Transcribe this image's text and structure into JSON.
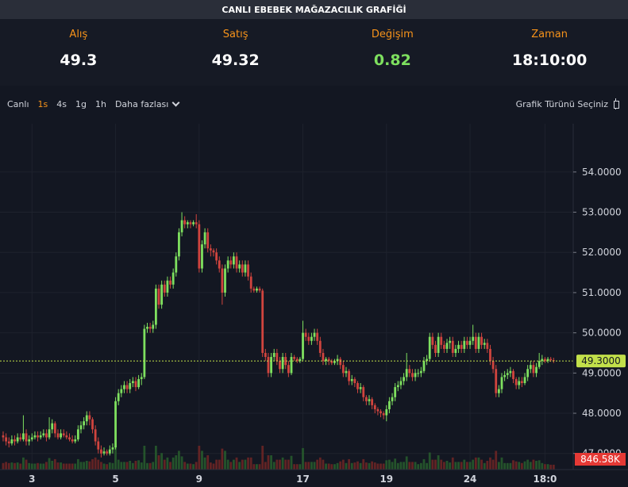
{
  "title": "CANLI EBEBEK MAĞAZACILIK GRAFİĞİ",
  "quotes": [
    {
      "label": "Alış",
      "value": "49.3"
    },
    {
      "label": "Satış",
      "value": "49.32"
    },
    {
      "label": "Değişim",
      "value": "0.82"
    },
    {
      "label": "Zaman",
      "value": "18:10:00"
    }
  ],
  "toolbar": {
    "canli": "Canlı",
    "intervals": [
      "1s",
      "4s",
      "1g",
      "1h"
    ],
    "active_interval": "1s",
    "more": "Daha fazlası",
    "chart_type": "Grafik Türünü Seçiniz"
  },
  "colors": {
    "up": "#7ee05f",
    "down": "#d0443e",
    "price_line": "#c2e04a",
    "volume_badge": "#e53935"
  },
  "chart_data": {
    "type": "candlestick",
    "y_ticks": [
      "54.0000",
      "53.0000",
      "52.0000",
      "51.0000",
      "50.0000",
      "49.0000",
      "48.0000",
      "47.0000"
    ],
    "ylim": [
      46.6,
      55.2
    ],
    "x_ticks": [
      {
        "label": "3",
        "i": 10
      },
      {
        "label": "5",
        "i": 39
      },
      {
        "label": "9",
        "i": 68
      },
      {
        "label": "17",
        "i": 104
      },
      {
        "label": "19",
        "i": 133
      },
      {
        "label": "24",
        "i": 162
      },
      {
        "label": "18:0",
        "i": 188
      }
    ],
    "last_price": "49.3000",
    "last_price_value": 49.3,
    "volume_label": "846.58K",
    "candles": [
      [
        47.45,
        47.4,
        47.55,
        47.3
      ],
      [
        47.4,
        47.3,
        47.5,
        47.2
      ],
      [
        47.3,
        47.25,
        47.4,
        47.15
      ],
      [
        47.25,
        47.35,
        47.45,
        47.2
      ],
      [
        47.35,
        47.3,
        47.45,
        47.2
      ],
      [
        47.3,
        47.4,
        47.5,
        47.25
      ],
      [
        47.4,
        47.35,
        47.5,
        47.3
      ],
      [
        47.35,
        47.5,
        47.95,
        47.3
      ],
      [
        47.5,
        47.3,
        47.6,
        47.2
      ],
      [
        47.3,
        47.35,
        47.45,
        47.2
      ],
      [
        47.35,
        47.4,
        47.5,
        47.3
      ],
      [
        47.4,
        47.45,
        47.55,
        47.35
      ],
      [
        47.45,
        47.4,
        47.55,
        47.3
      ],
      [
        47.4,
        47.45,
        47.55,
        47.35
      ],
      [
        47.45,
        47.5,
        47.6,
        47.4
      ],
      [
        47.5,
        47.4,
        47.6,
        47.3
      ],
      [
        47.4,
        47.6,
        47.9,
        47.35
      ],
      [
        47.6,
        47.75,
        47.85,
        47.5
      ],
      [
        47.75,
        47.5,
        47.8,
        47.4
      ],
      [
        47.5,
        47.4,
        47.6,
        47.35
      ],
      [
        47.4,
        47.5,
        47.6,
        47.35
      ],
      [
        47.5,
        47.45,
        47.6,
        47.4
      ],
      [
        47.45,
        47.4,
        47.55,
        47.35
      ],
      [
        47.4,
        47.35,
        47.5,
        47.3
      ],
      [
        47.35,
        47.3,
        47.45,
        47.25
      ],
      [
        47.3,
        47.35,
        47.45,
        47.25
      ],
      [
        47.35,
        47.6,
        47.7,
        47.3
      ],
      [
        47.6,
        47.7,
        47.8,
        47.5
      ],
      [
        47.7,
        47.8,
        47.9,
        47.6
      ],
      [
        47.8,
        47.95,
        48.05,
        47.7
      ],
      [
        47.95,
        47.85,
        48.05,
        47.7
      ],
      [
        47.85,
        47.6,
        47.9,
        47.5
      ],
      [
        47.6,
        47.3,
        47.7,
        47.2
      ],
      [
        47.3,
        47.1,
        47.4,
        47.0
      ],
      [
        47.1,
        47.0,
        47.2,
        46.9
      ],
      [
        47.0,
        47.05,
        47.15,
        46.95
      ],
      [
        47.05,
        47.0,
        47.1,
        46.95
      ],
      [
        47.0,
        47.1,
        47.2,
        46.95
      ],
      [
        47.1,
        47.15,
        47.25,
        47.0
      ],
      [
        47.15,
        48.3,
        48.4,
        47.1
      ],
      [
        48.3,
        48.5,
        48.6,
        48.2
      ],
      [
        48.5,
        48.6,
        48.7,
        48.4
      ],
      [
        48.6,
        48.7,
        48.8,
        48.5
      ],
      [
        48.7,
        48.6,
        48.8,
        48.5
      ],
      [
        48.6,
        48.75,
        48.85,
        48.5
      ],
      [
        48.75,
        48.8,
        48.9,
        48.65
      ],
      [
        48.8,
        48.65,
        48.9,
        48.55
      ],
      [
        48.65,
        48.85,
        48.95,
        48.6
      ],
      [
        48.85,
        48.9,
        49.0,
        48.7
      ],
      [
        48.9,
        50.1,
        50.2,
        48.85
      ],
      [
        50.1,
        50.15,
        50.25,
        50.0
      ],
      [
        50.15,
        50.1,
        50.25,
        50.0
      ],
      [
        50.1,
        50.2,
        50.3,
        50.0
      ],
      [
        50.2,
        51.1,
        51.2,
        50.1
      ],
      [
        51.1,
        50.7,
        51.2,
        50.6
      ],
      [
        50.7,
        51.2,
        51.3,
        50.6
      ],
      [
        51.2,
        51.0,
        51.3,
        50.9
      ],
      [
        51.0,
        51.3,
        51.4,
        50.9
      ],
      [
        51.3,
        51.2,
        51.4,
        51.1
      ],
      [
        51.2,
        51.5,
        51.6,
        51.1
      ],
      [
        51.5,
        51.9,
        52.0,
        51.4
      ],
      [
        51.9,
        52.5,
        52.6,
        51.8
      ],
      [
        52.5,
        52.8,
        53.0,
        52.4
      ],
      [
        52.8,
        52.7,
        52.9,
        52.6
      ],
      [
        52.7,
        52.75,
        52.8,
        52.6
      ],
      [
        52.75,
        52.7,
        52.8,
        52.6
      ],
      [
        52.7,
        52.75,
        52.8,
        52.65
      ],
      [
        52.75,
        52.7,
        52.95,
        52.6
      ],
      [
        52.7,
        51.6,
        52.8,
        51.5
      ],
      [
        51.6,
        52.2,
        52.3,
        51.5
      ],
      [
        52.2,
        52.5,
        52.6,
        52.1
      ],
      [
        52.5,
        52.1,
        52.6,
        52.0
      ],
      [
        52.1,
        52.05,
        52.2,
        51.9
      ],
      [
        52.05,
        52.0,
        52.1,
        51.9
      ],
      [
        52.0,
        51.8,
        52.1,
        51.7
      ],
      [
        51.8,
        51.6,
        51.9,
        51.5
      ],
      [
        51.6,
        51.0,
        51.7,
        50.7
      ],
      [
        51.0,
        51.6,
        51.7,
        50.9
      ],
      [
        51.6,
        51.8,
        51.9,
        51.5
      ],
      [
        51.8,
        51.7,
        51.9,
        51.6
      ],
      [
        51.7,
        51.9,
        52.0,
        51.6
      ],
      [
        51.9,
        51.6,
        52.0,
        51.5
      ],
      [
        51.6,
        51.7,
        51.8,
        51.5
      ],
      [
        51.7,
        51.5,
        51.8,
        51.4
      ],
      [
        51.5,
        51.7,
        51.8,
        51.4
      ],
      [
        51.7,
        51.4,
        51.8,
        51.3
      ],
      [
        51.4,
        51.1,
        51.5,
        51.0
      ],
      [
        51.1,
        51.05,
        51.15,
        51.0
      ],
      [
        51.05,
        51.1,
        51.15,
        51.0
      ],
      [
        51.1,
        51.05,
        51.15,
        51.0
      ],
      [
        51.05,
        49.5,
        51.1,
        49.4
      ],
      [
        49.5,
        49.4,
        49.6,
        49.3
      ],
      [
        49.4,
        49.0,
        49.5,
        48.9
      ],
      [
        49.0,
        49.4,
        49.5,
        48.9
      ],
      [
        49.4,
        49.5,
        49.6,
        49.3
      ],
      [
        49.5,
        49.3,
        49.6,
        49.2
      ],
      [
        49.3,
        49.1,
        49.4,
        49.0
      ],
      [
        49.1,
        49.4,
        49.5,
        49.0
      ],
      [
        49.4,
        49.2,
        49.5,
        49.1
      ],
      [
        49.2,
        49.0,
        49.3,
        48.9
      ],
      [
        49.0,
        49.4,
        49.5,
        48.95
      ],
      [
        49.4,
        49.35,
        49.45,
        49.3
      ],
      [
        49.35,
        49.3,
        49.4,
        49.25
      ],
      [
        49.3,
        49.35,
        49.4,
        49.25
      ],
      [
        49.35,
        50.0,
        50.3,
        49.3
      ],
      [
        50.0,
        49.9,
        50.1,
        49.8
      ],
      [
        49.9,
        49.8,
        50.0,
        49.7
      ],
      [
        49.8,
        49.9,
        50.0,
        49.7
      ],
      [
        49.9,
        50.0,
        50.1,
        49.8
      ],
      [
        50.0,
        49.8,
        50.1,
        49.7
      ],
      [
        49.8,
        49.5,
        49.9,
        49.4
      ],
      [
        49.5,
        49.3,
        49.6,
        49.2
      ],
      [
        49.3,
        49.35,
        49.4,
        49.2
      ],
      [
        49.35,
        49.3,
        49.4,
        49.2
      ],
      [
        49.3,
        49.25,
        49.35,
        49.2
      ],
      [
        49.25,
        49.3,
        49.35,
        49.2
      ],
      [
        49.3,
        49.35,
        49.45,
        49.2
      ],
      [
        49.35,
        49.2,
        49.4,
        49.1
      ],
      [
        49.2,
        49.0,
        49.3,
        48.9
      ],
      [
        49.0,
        49.05,
        49.15,
        48.9
      ],
      [
        49.05,
        48.8,
        49.1,
        48.7
      ],
      [
        48.8,
        48.85,
        48.95,
        48.7
      ],
      [
        48.85,
        48.75,
        48.9,
        48.65
      ],
      [
        48.75,
        48.6,
        48.8,
        48.5
      ],
      [
        48.6,
        48.65,
        48.75,
        48.5
      ],
      [
        48.65,
        48.4,
        48.7,
        48.3
      ],
      [
        48.4,
        48.3,
        48.45,
        48.2
      ],
      [
        48.3,
        48.35,
        48.45,
        48.2
      ],
      [
        48.35,
        48.2,
        48.4,
        48.1
      ],
      [
        48.2,
        48.1,
        48.25,
        48.0
      ],
      [
        48.1,
        48.05,
        48.15,
        47.95
      ],
      [
        48.05,
        48.0,
        48.1,
        47.9
      ],
      [
        48.0,
        47.95,
        48.05,
        47.85
      ],
      [
        47.95,
        48.1,
        48.2,
        47.8
      ],
      [
        48.1,
        48.3,
        48.4,
        48.0
      ],
      [
        48.3,
        48.4,
        48.5,
        48.2
      ],
      [
        48.4,
        48.65,
        48.75,
        48.3
      ],
      [
        48.65,
        48.7,
        48.8,
        48.55
      ],
      [
        48.7,
        48.8,
        48.9,
        48.6
      ],
      [
        48.8,
        48.9,
        49.0,
        48.7
      ],
      [
        48.9,
        49.1,
        49.5,
        48.8
      ],
      [
        49.1,
        49.0,
        49.2,
        48.9
      ],
      [
        49.0,
        48.9,
        49.1,
        48.8
      ],
      [
        48.9,
        49.0,
        49.1,
        48.8
      ],
      [
        49.0,
        49.0,
        49.1,
        48.9
      ],
      [
        49.0,
        49.05,
        49.15,
        48.9
      ],
      [
        49.05,
        49.3,
        49.4,
        49.0
      ],
      [
        49.3,
        49.35,
        49.45,
        49.2
      ],
      [
        49.35,
        49.9,
        50.0,
        49.3
      ],
      [
        49.9,
        49.7,
        50.0,
        49.6
      ],
      [
        49.7,
        49.5,
        49.8,
        49.4
      ],
      [
        49.5,
        49.9,
        50.0,
        49.4
      ],
      [
        49.9,
        49.7,
        50.0,
        49.6
      ],
      [
        49.7,
        49.6,
        49.8,
        49.5
      ],
      [
        49.6,
        49.75,
        49.85,
        49.5
      ],
      [
        49.75,
        49.8,
        49.9,
        49.6
      ],
      [
        49.8,
        49.5,
        49.9,
        49.4
      ],
      [
        49.5,
        49.6,
        49.7,
        49.4
      ],
      [
        49.6,
        49.7,
        49.8,
        49.5
      ],
      [
        49.7,
        49.6,
        49.8,
        49.5
      ],
      [
        49.6,
        49.8,
        49.9,
        49.5
      ],
      [
        49.8,
        49.7,
        49.9,
        49.6
      ],
      [
        49.7,
        49.8,
        49.9,
        49.6
      ],
      [
        49.8,
        49.9,
        50.2,
        49.7
      ],
      [
        49.9,
        49.6,
        50.0,
        49.5
      ],
      [
        49.6,
        49.9,
        50.0,
        49.5
      ],
      [
        49.9,
        49.7,
        50.0,
        49.6
      ],
      [
        49.7,
        49.75,
        49.85,
        49.6
      ],
      [
        49.75,
        49.6,
        49.85,
        49.5
      ],
      [
        49.6,
        49.3,
        49.7,
        49.2
      ],
      [
        49.3,
        49.1,
        49.4,
        49.0
      ],
      [
        49.1,
        48.5,
        49.2,
        48.4
      ],
      [
        48.5,
        48.6,
        48.7,
        48.4
      ],
      [
        48.6,
        48.9,
        49.0,
        48.5
      ],
      [
        48.9,
        48.95,
        49.05,
        48.8
      ],
      [
        48.95,
        49.0,
        49.1,
        48.85
      ],
      [
        49.0,
        49.05,
        49.15,
        48.9
      ],
      [
        49.05,
        48.85,
        49.1,
        48.75
      ],
      [
        48.85,
        48.7,
        48.9,
        48.6
      ],
      [
        48.7,
        48.8,
        48.9,
        48.6
      ],
      [
        48.8,
        48.75,
        48.9,
        48.65
      ],
      [
        48.75,
        48.9,
        49.0,
        48.7
      ],
      [
        48.9,
        49.1,
        49.2,
        48.8
      ],
      [
        49.1,
        49.2,
        49.3,
        49.0
      ],
      [
        49.2,
        49.0,
        49.3,
        48.9
      ],
      [
        49.0,
        49.15,
        49.25,
        48.9
      ],
      [
        49.15,
        49.3,
        49.5,
        49.1
      ],
      [
        49.3,
        49.35,
        49.45,
        49.2
      ],
      [
        49.35,
        49.3,
        49.4,
        49.25
      ],
      [
        49.3,
        49.35,
        49.4,
        49.25
      ],
      [
        49.35,
        49.32,
        49.4,
        49.28
      ],
      [
        49.32,
        49.3,
        49.38,
        49.25
      ]
    ]
  }
}
